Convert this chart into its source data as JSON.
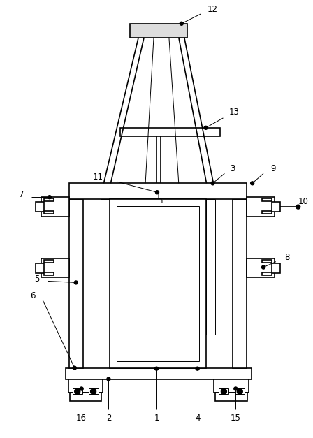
{
  "bg_color": "#ffffff",
  "line_color": "#000000",
  "line_width": 1.2,
  "thin_line": 0.7,
  "figsize": [
    4.48,
    6.27
  ],
  "dpi": 100
}
